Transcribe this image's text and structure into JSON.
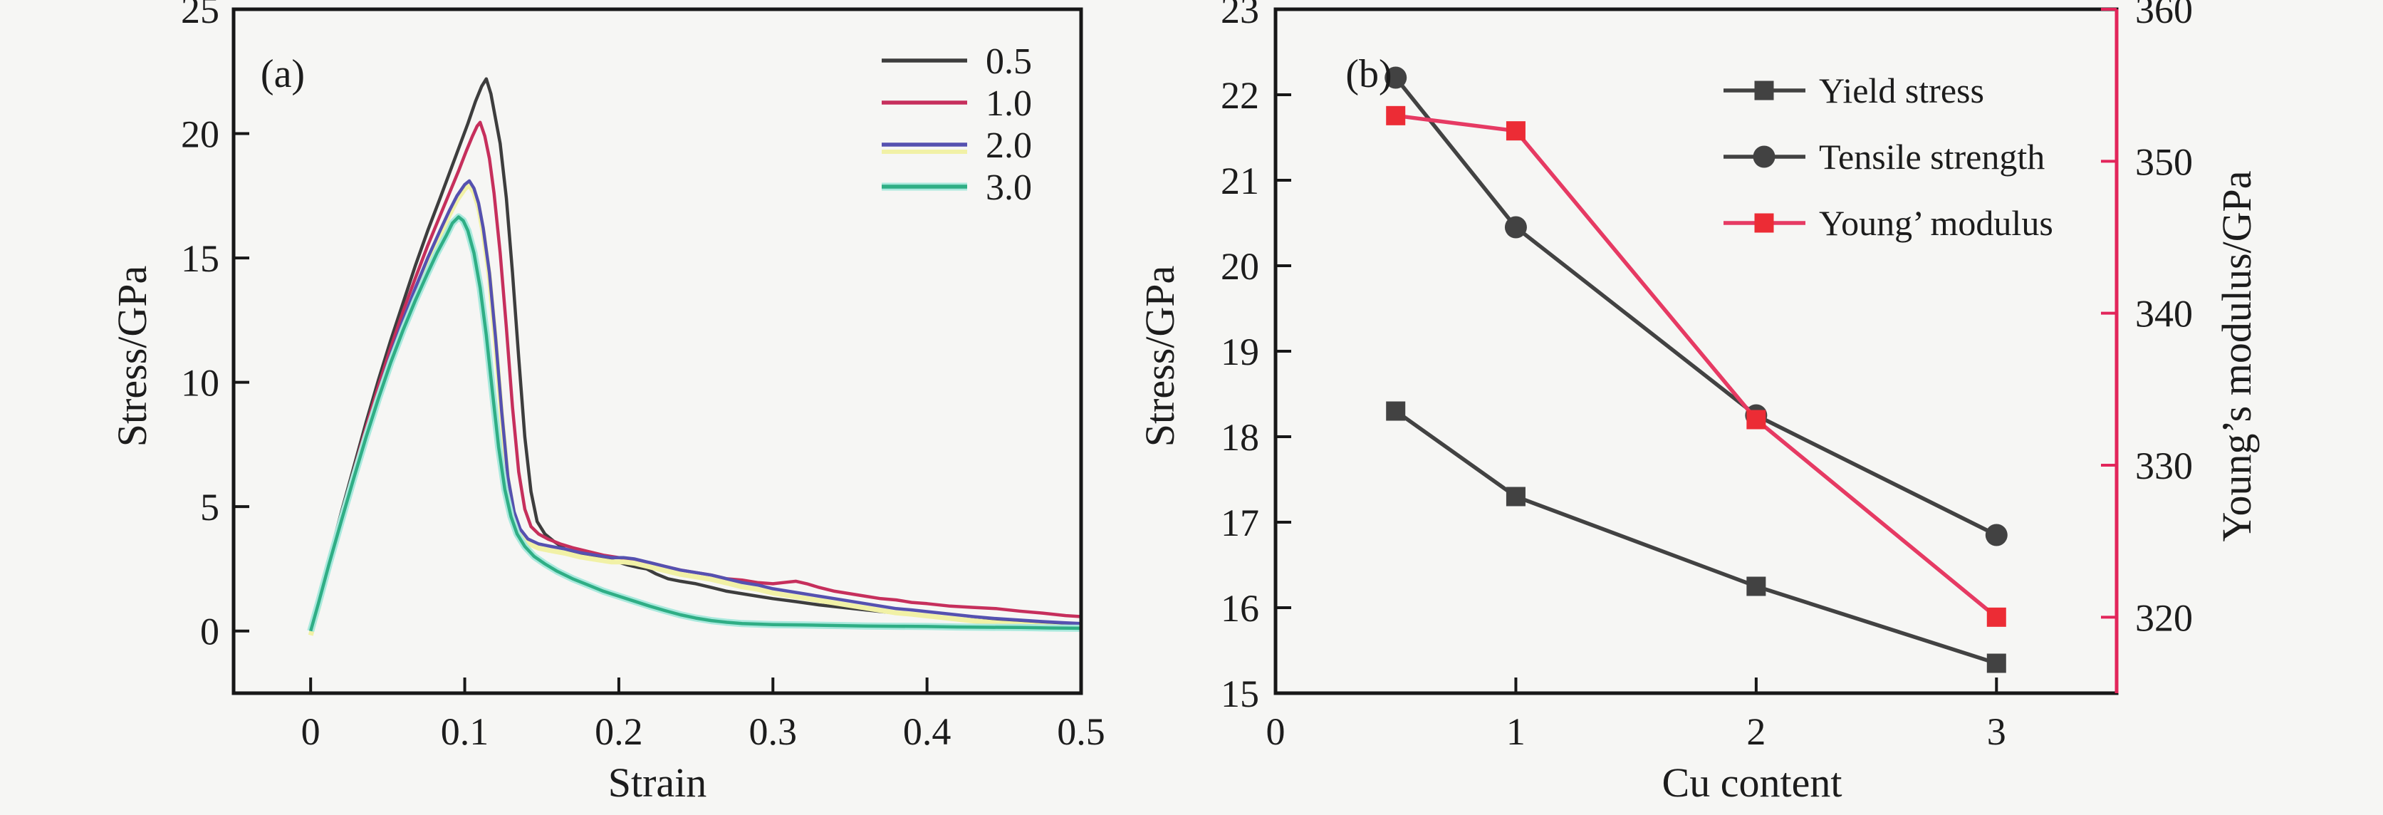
{
  "figure": {
    "background": "#f6f6f4",
    "text_color": "#1c1c1c",
    "spine_color": "#171717"
  },
  "chart_data": [
    {
      "type": "line",
      "panel_label": "(a)",
      "xlabel": "Strain",
      "ylabel": "Stress/GPa",
      "xlim": [
        -0.05,
        0.5
      ],
      "ylim": [
        -2.5,
        25
      ],
      "xtick_values": [
        0,
        0.1,
        0.2,
        0.3,
        0.4,
        0.5
      ],
      "xtick_labels": [
        "0",
        "0.1",
        "0.2",
        "0.3",
        "0.4",
        "0.5"
      ],
      "ytick_values": [
        0,
        5,
        10,
        15,
        20,
        25
      ],
      "ytick_labels": [
        "0",
        "5",
        "10",
        "15",
        "20",
        "25"
      ],
      "grid": false,
      "legend_position": "top-right-inside",
      "series": [
        {
          "name": "0.5",
          "color": "#3d3d3d",
          "halo": null,
          "points": [
            [
              0,
              0
            ],
            [
              0.005,
              1.2
            ],
            [
              0.012,
              2.9
            ],
            [
              0.02,
              4.8
            ],
            [
              0.028,
              6.6
            ],
            [
              0.036,
              8.4
            ],
            [
              0.044,
              10.1
            ],
            [
              0.052,
              11.7
            ],
            [
              0.06,
              13.2
            ],
            [
              0.068,
              14.7
            ],
            [
              0.076,
              16.1
            ],
            [
              0.084,
              17.4
            ],
            [
              0.09,
              18.4
            ],
            [
              0.096,
              19.4
            ],
            [
              0.102,
              20.4
            ],
            [
              0.107,
              21.3
            ],
            [
              0.111,
              21.9
            ],
            [
              0.114,
              22.2
            ],
            [
              0.117,
              21.6
            ],
            [
              0.12,
              20.6
            ],
            [
              0.123,
              19.6
            ],
            [
              0.127,
              17.4
            ],
            [
              0.131,
              14.4
            ],
            [
              0.135,
              11.0
            ],
            [
              0.139,
              7.8
            ],
            [
              0.143,
              5.6
            ],
            [
              0.147,
              4.4
            ],
            [
              0.152,
              3.9
            ],
            [
              0.158,
              3.6
            ],
            [
              0.165,
              3.3
            ],
            [
              0.173,
              3.15
            ],
            [
              0.181,
              3.0
            ],
            [
              0.19,
              2.9
            ],
            [
              0.198,
              2.8
            ],
            [
              0.206,
              2.65
            ],
            [
              0.213,
              2.55
            ],
            [
              0.218,
              2.5
            ],
            [
              0.224,
              2.3
            ],
            [
              0.232,
              2.1
            ],
            [
              0.24,
              2.0
            ],
            [
              0.25,
              1.9
            ],
            [
              0.26,
              1.75
            ],
            [
              0.27,
              1.6
            ],
            [
              0.28,
              1.5
            ],
            [
              0.29,
              1.4
            ],
            [
              0.3,
              1.3
            ],
            [
              0.315,
              1.18
            ],
            [
              0.33,
              1.05
            ],
            [
              0.345,
              0.95
            ],
            [
              0.36,
              0.85
            ],
            [
              0.375,
              0.75
            ],
            [
              0.39,
              0.68
            ],
            [
              0.405,
              0.6
            ],
            [
              0.42,
              0.5
            ],
            [
              0.435,
              0.42
            ],
            [
              0.45,
              0.38
            ],
            [
              0.465,
              0.33
            ],
            [
              0.48,
              0.3
            ],
            [
              0.5,
              0.28
            ]
          ]
        },
        {
          "name": "1.0",
          "color": "#c62f5c",
          "halo": null,
          "points": [
            [
              0,
              0
            ],
            [
              0.005,
              1.15
            ],
            [
              0.012,
              2.8
            ],
            [
              0.02,
              4.65
            ],
            [
              0.028,
              6.45
            ],
            [
              0.036,
              8.2
            ],
            [
              0.044,
              9.85
            ],
            [
              0.052,
              11.4
            ],
            [
              0.06,
              12.85
            ],
            [
              0.068,
              14.2
            ],
            [
              0.076,
              15.5
            ],
            [
              0.084,
              16.7
            ],
            [
              0.09,
              17.6
            ],
            [
              0.096,
              18.5
            ],
            [
              0.101,
              19.3
            ],
            [
              0.105,
              19.9
            ],
            [
              0.108,
              20.3
            ],
            [
              0.11,
              20.45
            ],
            [
              0.113,
              19.9
            ],
            [
              0.116,
              19.0
            ],
            [
              0.119,
              17.6
            ],
            [
              0.123,
              15.2
            ],
            [
              0.127,
              12.2
            ],
            [
              0.131,
              9.0
            ],
            [
              0.135,
              6.4
            ],
            [
              0.139,
              4.9
            ],
            [
              0.143,
              4.2
            ],
            [
              0.148,
              3.9
            ],
            [
              0.154,
              3.7
            ],
            [
              0.162,
              3.5
            ],
            [
              0.17,
              3.35
            ],
            [
              0.18,
              3.2
            ],
            [
              0.19,
              3.05
            ],
            [
              0.2,
              2.95
            ],
            [
              0.21,
              2.85
            ],
            [
              0.22,
              2.75
            ],
            [
              0.23,
              2.6
            ],
            [
              0.24,
              2.45
            ],
            [
              0.25,
              2.35
            ],
            [
              0.26,
              2.25
            ],
            [
              0.27,
              2.1
            ],
            [
              0.28,
              2.05
            ],
            [
              0.29,
              1.95
            ],
            [
              0.3,
              1.9
            ],
            [
              0.307,
              1.95
            ],
            [
              0.315,
              2.0
            ],
            [
              0.322,
              1.9
            ],
            [
              0.33,
              1.75
            ],
            [
              0.34,
              1.6
            ],
            [
              0.35,
              1.5
            ],
            [
              0.36,
              1.4
            ],
            [
              0.37,
              1.3
            ],
            [
              0.38,
              1.25
            ],
            [
              0.39,
              1.15
            ],
            [
              0.4,
              1.1
            ],
            [
              0.415,
              1.0
            ],
            [
              0.43,
              0.95
            ],
            [
              0.445,
              0.9
            ],
            [
              0.46,
              0.8
            ],
            [
              0.475,
              0.72
            ],
            [
              0.49,
              0.62
            ],
            [
              0.5,
              0.58
            ]
          ]
        },
        {
          "name": "2.0",
          "color": "#5551b0",
          "halo": "#f1f1a6",
          "halo_offset": 6,
          "points": [
            [
              0,
              0
            ],
            [
              0.005,
              1.1
            ],
            [
              0.012,
              2.75
            ],
            [
              0.02,
              4.55
            ],
            [
              0.028,
              6.3
            ],
            [
              0.036,
              8.0
            ],
            [
              0.044,
              9.6
            ],
            [
              0.052,
              11.1
            ],
            [
              0.06,
              12.5
            ],
            [
              0.068,
              13.8
            ],
            [
              0.076,
              15.0
            ],
            [
              0.084,
              16.1
            ],
            [
              0.09,
              16.9
            ],
            [
              0.095,
              17.5
            ],
            [
              0.1,
              17.95
            ],
            [
              0.103,
              18.1
            ],
            [
              0.106,
              17.8
            ],
            [
              0.109,
              17.2
            ],
            [
              0.112,
              16.2
            ],
            [
              0.116,
              14.4
            ],
            [
              0.12,
              11.8
            ],
            [
              0.124,
              8.8
            ],
            [
              0.128,
              6.2
            ],
            [
              0.132,
              4.8
            ],
            [
              0.136,
              4.1
            ],
            [
              0.141,
              3.7
            ],
            [
              0.148,
              3.5
            ],
            [
              0.156,
              3.4
            ],
            [
              0.165,
              3.3
            ],
            [
              0.175,
              3.15
            ],
            [
              0.185,
              3.05
            ],
            [
              0.195,
              2.95
            ],
            [
              0.203,
              2.95
            ],
            [
              0.21,
              2.9
            ],
            [
              0.22,
              2.75
            ],
            [
              0.23,
              2.6
            ],
            [
              0.24,
              2.45
            ],
            [
              0.25,
              2.35
            ],
            [
              0.26,
              2.25
            ],
            [
              0.27,
              2.1
            ],
            [
              0.28,
              1.95
            ],
            [
              0.29,
              1.85
            ],
            [
              0.3,
              1.7
            ],
            [
              0.31,
              1.6
            ],
            [
              0.32,
              1.5
            ],
            [
              0.33,
              1.4
            ],
            [
              0.34,
              1.3
            ],
            [
              0.35,
              1.2
            ],
            [
              0.36,
              1.1
            ],
            [
              0.37,
              1.0
            ],
            [
              0.38,
              0.9
            ],
            [
              0.39,
              0.85
            ],
            [
              0.4,
              0.78
            ],
            [
              0.415,
              0.68
            ],
            [
              0.43,
              0.58
            ],
            [
              0.445,
              0.5
            ],
            [
              0.46,
              0.44
            ],
            [
              0.475,
              0.38
            ],
            [
              0.49,
              0.33
            ],
            [
              0.5,
              0.3
            ]
          ]
        },
        {
          "name": "3.0",
          "color": "#2fae85",
          "halo": "#a9e9dd",
          "halo_offset": 0,
          "points": [
            [
              0,
              0
            ],
            [
              0.005,
              1.1
            ],
            [
              0.012,
              2.7
            ],
            [
              0.02,
              4.45
            ],
            [
              0.028,
              6.15
            ],
            [
              0.036,
              7.8
            ],
            [
              0.044,
              9.35
            ],
            [
              0.052,
              10.8
            ],
            [
              0.06,
              12.1
            ],
            [
              0.068,
              13.3
            ],
            [
              0.076,
              14.4
            ],
            [
              0.082,
              15.2
            ],
            [
              0.088,
              15.9
            ],
            [
              0.092,
              16.4
            ],
            [
              0.096,
              16.65
            ],
            [
              0.099,
              16.5
            ],
            [
              0.102,
              16.1
            ],
            [
              0.106,
              15.2
            ],
            [
              0.11,
              13.8
            ],
            [
              0.114,
              11.9
            ],
            [
              0.118,
              9.6
            ],
            [
              0.122,
              7.4
            ],
            [
              0.126,
              5.7
            ],
            [
              0.13,
              4.6
            ],
            [
              0.134,
              3.9
            ],
            [
              0.139,
              3.4
            ],
            [
              0.145,
              3.0
            ],
            [
              0.152,
              2.7
            ],
            [
              0.16,
              2.4
            ],
            [
              0.17,
              2.1
            ],
            [
              0.18,
              1.85
            ],
            [
              0.19,
              1.6
            ],
            [
              0.2,
              1.4
            ],
            [
              0.21,
              1.2
            ],
            [
              0.22,
              1.0
            ],
            [
              0.23,
              0.82
            ],
            [
              0.24,
              0.65
            ],
            [
              0.25,
              0.52
            ],
            [
              0.26,
              0.42
            ],
            [
              0.27,
              0.35
            ],
            [
              0.28,
              0.3
            ],
            [
              0.29,
              0.28
            ],
            [
              0.3,
              0.26
            ],
            [
              0.32,
              0.24
            ],
            [
              0.34,
              0.22
            ],
            [
              0.36,
              0.2
            ],
            [
              0.38,
              0.19
            ],
            [
              0.4,
              0.18
            ],
            [
              0.42,
              0.16
            ],
            [
              0.44,
              0.15
            ],
            [
              0.46,
              0.14
            ],
            [
              0.48,
              0.12
            ],
            [
              0.5,
              0.11
            ]
          ]
        }
      ]
    },
    {
      "type": "line",
      "panel_label": "(b)",
      "xlabel": "Cu content",
      "ylabel_left": "Stress/GPa",
      "ylabel_right": "Young’s modulus/GPa",
      "right_axis_color": "#e2255a",
      "xlim": [
        0,
        3.5
      ],
      "ylim_left": [
        15,
        23
      ],
      "ylim_right": [
        315,
        360
      ],
      "xtick_values": [
        0,
        1,
        2,
        3
      ],
      "xtick_labels": [
        "0",
        "1",
        "2",
        "3"
      ],
      "ytick_left_values": [
        15,
        16,
        17,
        18,
        19,
        20,
        21,
        22,
        23
      ],
      "ytick_left_labels": [
        "15",
        "16",
        "17",
        "18",
        "19",
        "20",
        "21",
        "22",
        "23"
      ],
      "ytick_right_values": [
        320,
        330,
        340,
        350,
        360
      ],
      "ytick_right_labels": [
        "320",
        "330",
        "340",
        "350",
        "360"
      ],
      "grid": false,
      "legend_position": "top-right-inside",
      "x": [
        0.5,
        1,
        2,
        3
      ],
      "series": [
        {
          "name": "Yield stress",
          "axis": "left",
          "marker": "square",
          "color": "#424242",
          "marker_color": "#424242",
          "values": [
            18.3,
            17.3,
            16.25,
            15.35
          ]
        },
        {
          "name": "Tensile strength",
          "axis": "left",
          "marker": "circle",
          "color": "#424242",
          "marker_color": "#424242",
          "values": [
            22.2,
            20.45,
            18.25,
            16.85
          ]
        },
        {
          "name": "Young’ modulus",
          "axis": "right",
          "marker": "square",
          "color": "#e63a63",
          "marker_color": "#ec2c35",
          "values": [
            353,
            352,
            333,
            320
          ]
        }
      ]
    }
  ]
}
